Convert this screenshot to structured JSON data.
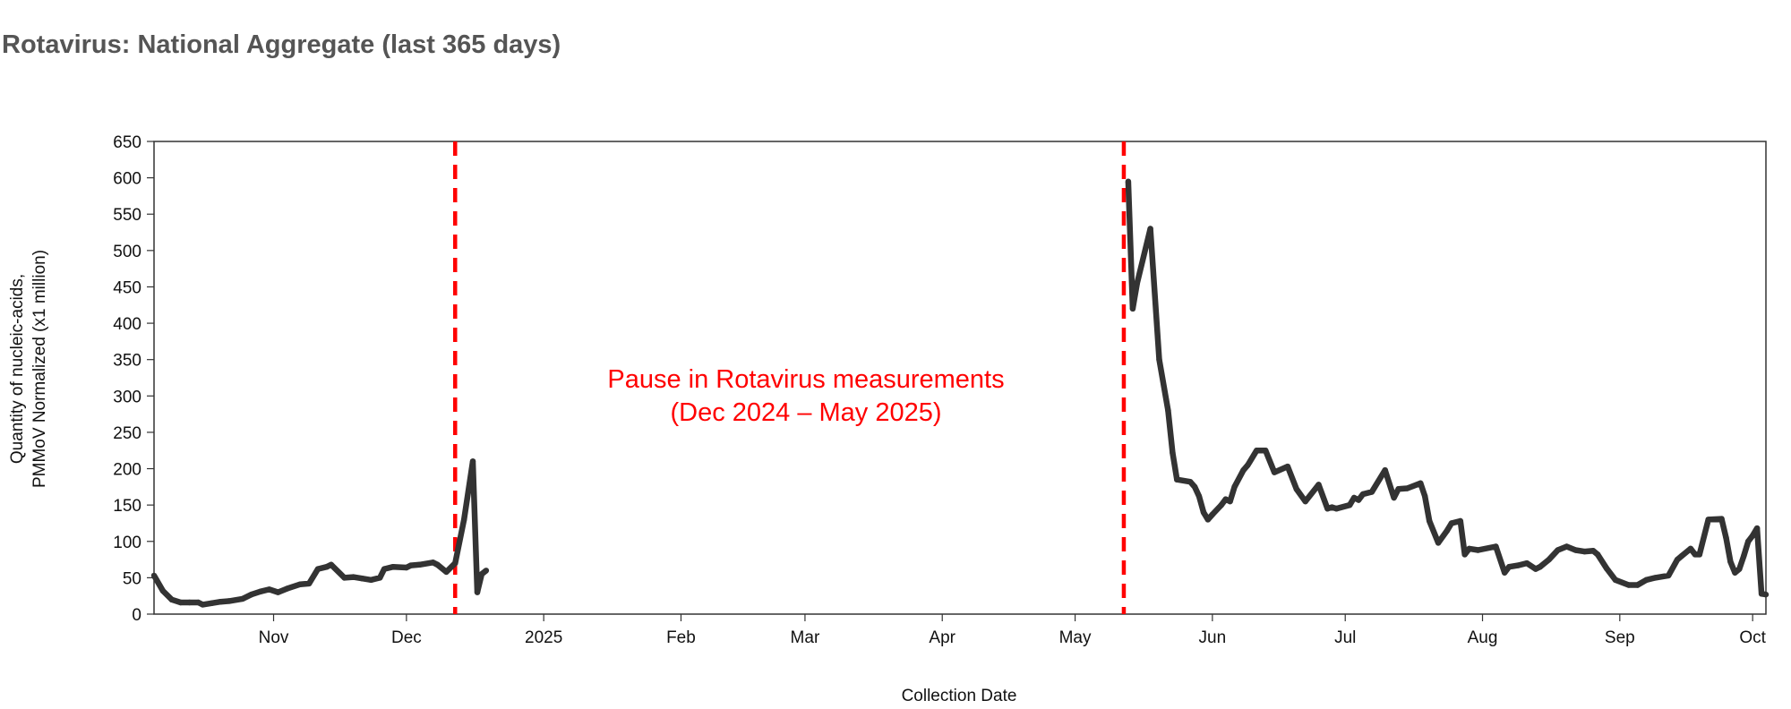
{
  "title": "Rotavirus: National Aggregate (last 365 days)",
  "chart_data": {
    "type": "line",
    "xlabel": "Collection Date",
    "ylabel_lines": [
      "Quantity of nucleic-acids,",
      "PMMoV Normalized (x1 million)"
    ],
    "ylim": [
      0,
      650
    ],
    "y_ticks": [
      0,
      50,
      100,
      150,
      200,
      250,
      300,
      350,
      400,
      450,
      500,
      550,
      600,
      650
    ],
    "xlim": [
      "2024-10-05",
      "2025-10-04"
    ],
    "x_ticks": [
      {
        "date": "2024-11-01",
        "label": "Nov"
      },
      {
        "date": "2024-12-01",
        "label": "Dec"
      },
      {
        "date": "2025-01-01",
        "label": "2025"
      },
      {
        "date": "2025-02-01",
        "label": "Feb"
      },
      {
        "date": "2025-03-01",
        "label": "Mar"
      },
      {
        "date": "2025-04-01",
        "label": "Apr"
      },
      {
        "date": "2025-05-01",
        "label": "May"
      },
      {
        "date": "2025-06-01",
        "label": "Jun"
      },
      {
        "date": "2025-07-01",
        "label": "Jul"
      },
      {
        "date": "2025-08-01",
        "label": "Aug"
      },
      {
        "date": "2025-09-01",
        "label": "Sep"
      },
      {
        "date": "2025-10-01",
        "label": "Oct"
      }
    ],
    "grid": false,
    "series": [
      {
        "color": "#333333",
        "segments": [
          [
            [
              "2024-10-05",
              53
            ],
            [
              "2024-10-07",
              32
            ],
            [
              "2024-10-09",
              20
            ],
            [
              "2024-10-11",
              16
            ],
            [
              "2024-10-13",
              16
            ],
            [
              "2024-10-15",
              16
            ],
            [
              "2024-10-16",
              13
            ],
            [
              "2024-10-18",
              15
            ],
            [
              "2024-10-20",
              17
            ],
            [
              "2024-10-22",
              18
            ],
            [
              "2024-10-25",
              21
            ],
            [
              "2024-10-27",
              27
            ],
            [
              "2024-10-29",
              31
            ],
            [
              "2024-10-31",
              34
            ],
            [
              "2024-11-02",
              30
            ],
            [
              "2024-11-04",
              35
            ],
            [
              "2024-11-07",
              41
            ],
            [
              "2024-11-09",
              42
            ],
            [
              "2024-11-11",
              62
            ],
            [
              "2024-11-13",
              65
            ],
            [
              "2024-11-14",
              68
            ],
            [
              "2024-11-17",
              50
            ],
            [
              "2024-11-19",
              51
            ],
            [
              "2024-11-21",
              49
            ],
            [
              "2024-11-23",
              47
            ],
            [
              "2024-11-25",
              50
            ],
            [
              "2024-11-26",
              62
            ],
            [
              "2024-11-28",
              65
            ],
            [
              "2024-12-01",
              64
            ],
            [
              "2024-12-02",
              67
            ],
            [
              "2024-12-04",
              68
            ],
            [
              "2024-12-07",
              71
            ],
            [
              "2024-12-08",
              68
            ],
            [
              "2024-12-10",
              58
            ],
            [
              "2024-12-12",
              70
            ],
            [
              "2024-12-14",
              130
            ],
            [
              "2024-12-16",
              210
            ],
            [
              "2024-12-17",
              30
            ],
            [
              "2024-12-18",
              55
            ],
            [
              "2024-12-19",
              60
            ]
          ],
          [
            [
              "2025-05-13",
              595
            ],
            [
              "2025-05-14",
              420
            ],
            [
              "2025-05-15",
              455
            ],
            [
              "2025-05-18",
              530
            ],
            [
              "2025-05-20",
              350
            ],
            [
              "2025-05-22",
              280
            ],
            [
              "2025-05-23",
              222
            ],
            [
              "2025-05-24",
              185
            ],
            [
              "2025-05-27",
              182
            ],
            [
              "2025-05-28",
              175
            ],
            [
              "2025-05-29",
              162
            ],
            [
              "2025-05-30",
              140
            ],
            [
              "2025-05-31",
              130
            ],
            [
              "2025-06-01",
              137
            ],
            [
              "2025-06-03",
              150
            ],
            [
              "2025-06-04",
              158
            ],
            [
              "2025-06-05",
              155
            ],
            [
              "2025-06-06",
              175
            ],
            [
              "2025-06-08",
              198
            ],
            [
              "2025-06-09",
              205
            ],
            [
              "2025-06-11",
              225
            ],
            [
              "2025-06-13",
              225
            ],
            [
              "2025-06-15",
              195
            ],
            [
              "2025-06-18",
              203
            ],
            [
              "2025-06-20",
              172
            ],
            [
              "2025-06-22",
              155
            ],
            [
              "2025-06-25",
              178
            ],
            [
              "2025-06-27",
              145
            ],
            [
              "2025-06-28",
              147
            ],
            [
              "2025-06-29",
              145
            ],
            [
              "2025-07-02",
              150
            ],
            [
              "2025-07-03",
              160
            ],
            [
              "2025-07-04",
              157
            ],
            [
              "2025-07-05",
              165
            ],
            [
              "2025-07-07",
              168
            ],
            [
              "2025-07-10",
              198
            ],
            [
              "2025-07-12",
              160
            ],
            [
              "2025-07-13",
              172
            ],
            [
              "2025-07-15",
              173
            ],
            [
              "2025-07-18",
              180
            ],
            [
              "2025-07-19",
              162
            ],
            [
              "2025-07-20",
              128
            ],
            [
              "2025-07-22",
              98
            ],
            [
              "2025-07-24",
              115
            ],
            [
              "2025-07-25",
              125
            ],
            [
              "2025-07-27",
              128
            ],
            [
              "2025-07-28",
              82
            ],
            [
              "2025-07-29",
              90
            ],
            [
              "2025-07-31",
              88
            ],
            [
              "2025-08-04",
              93
            ],
            [
              "2025-08-06",
              57
            ],
            [
              "2025-08-07",
              65
            ],
            [
              "2025-08-09",
              67
            ],
            [
              "2025-08-11",
              70
            ],
            [
              "2025-08-13",
              62
            ],
            [
              "2025-08-14",
              65
            ],
            [
              "2025-08-16",
              75
            ],
            [
              "2025-08-18",
              88
            ],
            [
              "2025-08-20",
              93
            ],
            [
              "2025-08-22",
              88
            ],
            [
              "2025-08-24",
              86
            ],
            [
              "2025-08-26",
              87
            ],
            [
              "2025-08-27",
              82
            ],
            [
              "2025-08-29",
              63
            ],
            [
              "2025-08-31",
              47
            ],
            [
              "2025-09-03",
              40
            ],
            [
              "2025-09-05",
              40
            ],
            [
              "2025-09-07",
              47
            ],
            [
              "2025-09-09",
              50
            ],
            [
              "2025-09-12",
              53
            ],
            [
              "2025-09-14",
              75
            ],
            [
              "2025-09-15",
              80
            ],
            [
              "2025-09-17",
              90
            ],
            [
              "2025-09-18",
              82
            ],
            [
              "2025-09-19",
              82
            ],
            [
              "2025-09-21",
              130
            ],
            [
              "2025-09-24",
              131
            ],
            [
              "2025-09-25",
              105
            ],
            [
              "2025-09-26",
              72
            ],
            [
              "2025-09-27",
              57
            ],
            [
              "2025-09-28",
              62
            ],
            [
              "2025-09-29",
              80
            ],
            [
              "2025-09-30",
              100
            ],
            [
              "2025-10-01",
              108
            ],
            [
              "2025-10-02",
              118
            ],
            [
              "2025-10-03",
              28
            ],
            [
              "2025-10-04",
              27
            ]
          ]
        ]
      }
    ],
    "reference_lines": [
      {
        "date": "2024-12-12",
        "color": "#ff0000",
        "style": "dashed"
      },
      {
        "date": "2025-05-12",
        "color": "#ff0000",
        "style": "dashed"
      }
    ],
    "annotation": {
      "lines": [
        "Pause in Rotavirus measurements",
        "(Dec 2024 – May 2025)"
      ],
      "color": "#ff0000"
    }
  }
}
